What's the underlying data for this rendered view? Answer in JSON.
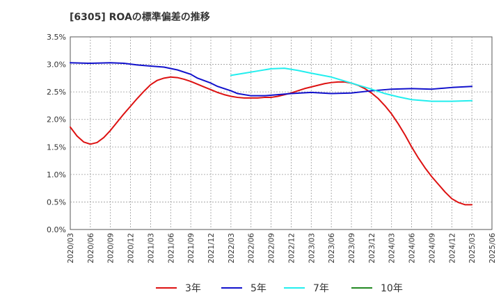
{
  "chart_data": {
    "type": "line",
    "title": "[6305]  ROAの標準偏差の推移",
    "xlabel": "",
    "ylabel": "",
    "x_ticks": [
      "2020/03",
      "2020/06",
      "2020/09",
      "2020/12",
      "2021/03",
      "2021/06",
      "2021/09",
      "2021/12",
      "2022/03",
      "2022/06",
      "2022/09",
      "2022/12",
      "2023/03",
      "2023/06",
      "2023/09",
      "2023/12",
      "2024/03",
      "2024/06",
      "2024/09",
      "2024/12",
      "2025/03",
      "2025/06"
    ],
    "y_ticks": [
      "0.0%",
      "0.5%",
      "1.0%",
      "1.5%",
      "2.0%",
      "2.5%",
      "3.0%",
      "3.5%"
    ],
    "ylim": [
      0,
      3.5
    ],
    "grid": true,
    "legend_position": "bottom",
    "series": [
      {
        "name": "3年",
        "color": "#dd1111",
        "points": [
          [
            "2020/03",
            1.86
          ],
          [
            "2020/04",
            1.7
          ],
          [
            "2020/05",
            1.59
          ],
          [
            "2020/06",
            1.55
          ],
          [
            "2020/07",
            1.58
          ],
          [
            "2020/08",
            1.67
          ],
          [
            "2020/09",
            1.8
          ],
          [
            "2020/10",
            1.95
          ],
          [
            "2020/11",
            2.1
          ],
          [
            "2020/12",
            2.24
          ],
          [
            "2021/01",
            2.38
          ],
          [
            "2021/02",
            2.51
          ],
          [
            "2021/03",
            2.63
          ],
          [
            "2021/04",
            2.71
          ],
          [
            "2021/05",
            2.75
          ],
          [
            "2021/06",
            2.77
          ],
          [
            "2021/07",
            2.76
          ],
          [
            "2021/08",
            2.73
          ],
          [
            "2021/09",
            2.69
          ],
          [
            "2021/10",
            2.64
          ],
          [
            "2021/11",
            2.59
          ],
          [
            "2021/12",
            2.54
          ],
          [
            "2022/01",
            2.49
          ],
          [
            "2022/02",
            2.45
          ],
          [
            "2022/03",
            2.42
          ],
          [
            "2022/04",
            2.4
          ],
          [
            "2022/05",
            2.39
          ],
          [
            "2022/06",
            2.39
          ],
          [
            "2022/07",
            2.39
          ],
          [
            "2022/08",
            2.4
          ],
          [
            "2022/09",
            2.4
          ],
          [
            "2022/10",
            2.42
          ],
          [
            "2022/11",
            2.45
          ],
          [
            "2022/12",
            2.48
          ],
          [
            "2023/01",
            2.52
          ],
          [
            "2023/02",
            2.56
          ],
          [
            "2023/03",
            2.59
          ],
          [
            "2023/04",
            2.62
          ],
          [
            "2023/05",
            2.65
          ],
          [
            "2023/06",
            2.67
          ],
          [
            "2023/07",
            2.68
          ],
          [
            "2023/08",
            2.68
          ],
          [
            "2023/09",
            2.66
          ],
          [
            "2023/10",
            2.62
          ],
          [
            "2023/11",
            2.56
          ],
          [
            "2023/12",
            2.48
          ],
          [
            "2024/01",
            2.38
          ],
          [
            "2024/02",
            2.25
          ],
          [
            "2024/03",
            2.1
          ],
          [
            "2024/04",
            1.92
          ],
          [
            "2024/05",
            1.72
          ],
          [
            "2024/06",
            1.5
          ],
          [
            "2024/07",
            1.3
          ],
          [
            "2024/08",
            1.12
          ],
          [
            "2024/09",
            0.96
          ],
          [
            "2024/10",
            0.82
          ],
          [
            "2024/11",
            0.68
          ],
          [
            "2024/12",
            0.56
          ],
          [
            "2025/01",
            0.49
          ],
          [
            "2025/02",
            0.45
          ],
          [
            "2025/03",
            0.45
          ]
        ]
      },
      {
        "name": "5年",
        "color": "#1111cc",
        "points": [
          [
            "2020/03",
            3.03
          ],
          [
            "2020/06",
            3.02
          ],
          [
            "2020/09",
            3.03
          ],
          [
            "2020/11",
            3.02
          ],
          [
            "2021/01",
            2.99
          ],
          [
            "2021/03",
            2.97
          ],
          [
            "2021/05",
            2.95
          ],
          [
            "2021/07",
            2.9
          ],
          [
            "2021/09",
            2.82
          ],
          [
            "2021/10",
            2.75
          ],
          [
            "2021/12",
            2.66
          ],
          [
            "2022/01",
            2.6
          ],
          [
            "2022/03",
            2.52
          ],
          [
            "2022/04",
            2.47
          ],
          [
            "2022/06",
            2.43
          ],
          [
            "2022/08",
            2.43
          ],
          [
            "2022/10",
            2.45
          ],
          [
            "2022/12",
            2.47
          ],
          [
            "2023/03",
            2.49
          ],
          [
            "2023/06",
            2.47
          ],
          [
            "2023/09",
            2.48
          ],
          [
            "2023/12",
            2.52
          ],
          [
            "2024/03",
            2.55
          ],
          [
            "2024/06",
            2.56
          ],
          [
            "2024/09",
            2.55
          ],
          [
            "2024/12",
            2.58
          ],
          [
            "2025/03",
            2.6
          ]
        ]
      },
      {
        "name": "7年",
        "color": "#22eeee",
        "points": [
          [
            "2022/03",
            2.8
          ],
          [
            "2022/05",
            2.84
          ],
          [
            "2022/07",
            2.88
          ],
          [
            "2022/09",
            2.92
          ],
          [
            "2022/11",
            2.93
          ],
          [
            "2023/01",
            2.89
          ],
          [
            "2023/03",
            2.84
          ],
          [
            "2023/06",
            2.77
          ],
          [
            "2023/09",
            2.66
          ],
          [
            "2023/12",
            2.55
          ],
          [
            "2024/02",
            2.47
          ],
          [
            "2024/04",
            2.41
          ],
          [
            "2024/06",
            2.36
          ],
          [
            "2024/09",
            2.33
          ],
          [
            "2024/12",
            2.33
          ],
          [
            "2025/03",
            2.34
          ]
        ]
      },
      {
        "name": "10年",
        "color": "#228822",
        "points": []
      }
    ]
  }
}
